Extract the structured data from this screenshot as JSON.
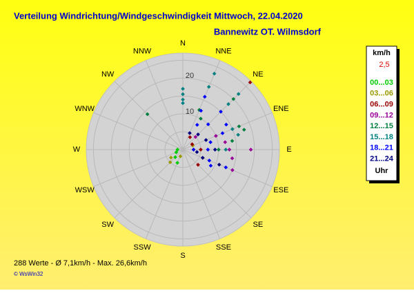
{
  "chart_data": {
    "type": "polar_scatter",
    "title": "Verteilung Windrichtung/Windgeschwindigkeit  Mittwoch, 22.04.2020",
    "subtitle": "Bannewitz OT. Wilmsdorf",
    "legend_title": "km/h",
    "legend_note": "2,5",
    "legend_footer": "Uhr",
    "summary": "288 Werte   -   Ø 7,1km/h  -  Max. 26,6km/h",
    "credit": "© WsWin32",
    "directions": [
      "N",
      "NNE",
      "NE",
      "ENE",
      "E",
      "ESE",
      "SE",
      "SSE",
      "S",
      "SSW",
      "SW",
      "WSW",
      "W",
      "WNW",
      "NW",
      "NNW"
    ],
    "rlim": [
      0,
      27
    ],
    "rticks": [
      10,
      20
    ],
    "rgrid": [
      5,
      10,
      15,
      20,
      25
    ],
    "series": [
      {
        "name": "00...03",
        "color": "#00cc00",
        "dir": [
          225,
          247.5,
          202.5,
          270
        ],
        "speed": [
          3,
          2,
          4,
          1.5
        ]
      },
      {
        "name": "03...06",
        "color": "#999900",
        "dir": [
          225,
          236,
          67.5,
          90,
          200
        ],
        "speed": [
          5,
          4,
          3,
          3,
          2
        ]
      },
      {
        "name": "06...09",
        "color": "#990000",
        "dir": [
          45,
          135,
          90,
          112.5,
          30,
          60
        ],
        "speed": [
          26.6,
          6,
          5,
          6,
          4,
          3
        ]
      },
      {
        "name": "09...12",
        "color": "#990099",
        "dir": [
          90,
          90,
          112.5,
          67.5,
          45,
          100,
          80
        ],
        "speed": [
          19,
          13,
          15,
          10,
          5,
          14,
          12
        ]
      },
      {
        "name": "12...15",
        "color": "#007f3f",
        "dir": [
          315,
          67.5,
          72,
          45,
          30,
          80,
          90,
          22.5
        ],
        "speed": [
          14,
          17,
          18,
          20,
          10,
          14,
          10,
          12
        ]
      },
      {
        "name": "15...18",
        "color": "#008080",
        "dir": [
          0,
          0,
          0,
          0,
          22.5,
          22.5,
          45,
          45,
          67.5,
          75,
          90
        ],
        "speed": [
          17,
          15.5,
          14,
          13,
          23,
          19,
          22,
          18,
          15,
          16,
          12
        ]
      },
      {
        "name": "18...21",
        "color": "#0000ff",
        "dir": [
          22.5,
          25,
          45,
          45,
          60,
          67.5,
          75,
          90,
          112.5,
          120,
          112.5,
          90,
          30
        ],
        "speed": [
          16,
          12,
          15,
          10,
          14,
          12,
          8,
          7,
          13,
          9,
          8,
          3,
          8
        ]
      },
      {
        "name": "21...24",
        "color": "#000080",
        "dir": [
          112.5,
          112.5,
          90,
          67.5,
          45,
          100,
          22.5
        ],
        "speed": [
          11,
          6,
          9,
          7,
          6,
          4,
          5
        ]
      }
    ]
  }
}
